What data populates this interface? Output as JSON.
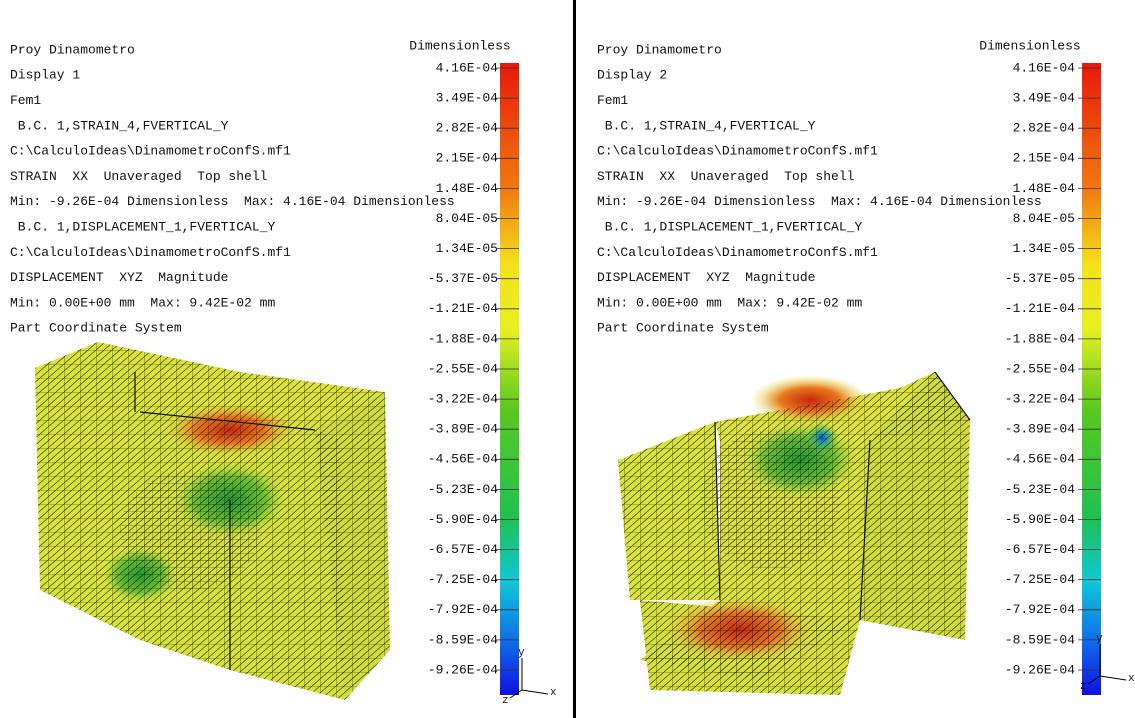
{
  "panels": [
    {
      "lines": [
        "Proy Dinamometro",
        "Display 1",
        "Fem1",
        " B.C. 1,STRAIN_4,FVERTICAL_Y",
        "C:\\CalculoIdeas\\DinamometroConfS.mf1",
        "STRAIN  XX  Unaveraged  Top shell",
        "Min: -9.26E-04 Dimensionless  Max: 4.16E-04 Dimensionless",
        " B.C. 1,DISPLACEMENT_1,FVERTICAL_Y",
        "C:\\CalculoIdeas\\DinamometroConfS.mf1",
        "DISPLACEMENT  XYZ  Magnitude",
        "Min: 0.00E+00 mm  Max: 9.42E-02 mm",
        "Part Coordinate System"
      ],
      "colorbar": {
        "unit": "Dimensionless",
        "labels": [
          "4.16E-04",
          "3.49E-04",
          "2.82E-04",
          "2.15E-04",
          "1.48E-04",
          "8.04E-05",
          "1.34E-05",
          "-5.37E-05",
          "-1.21E-04",
          "-1.88E-04",
          "-2.55E-04",
          "-3.22E-04",
          "-3.89E-04",
          "-4.56E-04",
          "-5.23E-04",
          "-5.90E-04",
          "-6.57E-04",
          "-7.25E-04",
          "-7.92E-04",
          "-8.59E-04",
          "-9.26E-04"
        ]
      },
      "triad": {
        "x": "x",
        "y": "y",
        "z": "z"
      }
    },
    {
      "lines": [
        "Proy Dinamometro",
        "Display 2",
        "Fem1",
        " B.C. 1,STRAIN_4,FVERTICAL_Y",
        "C:\\CalculoIdeas\\DinamometroConfS.mf1",
        "STRAIN  XX  Unaveraged  Top shell",
        "Min: -9.26E-04 Dimensionless  Max: 4.16E-04 Dimensionless",
        " B.C. 1,DISPLACEMENT_1,FVERTICAL_Y",
        "C:\\CalculoIdeas\\DinamometroConfS.mf1",
        "DISPLACEMENT  XYZ  Magnitude",
        "Min: 0.00E+00 mm  Max: 9.42E-02 mm",
        "Part Coordinate System"
      ],
      "colorbar": {
        "unit": "Dimensionless",
        "labels": [
          "4.16E-04",
          "3.49E-04",
          "2.82E-04",
          "2.15E-04",
          "1.48E-04",
          "8.04E-05",
          "1.34E-05",
          "-5.37E-05",
          "-1.21E-04",
          "-1.88E-04",
          "-2.55E-04",
          "-3.22E-04",
          "-3.89E-04",
          "-4.56E-04",
          "-5.23E-04",
          "-5.90E-04",
          "-6.57E-04",
          "-7.25E-04",
          "-7.92E-04",
          "-8.59E-04",
          "-9.26E-04"
        ]
      },
      "triad": {
        "x": "x",
        "y": "y",
        "z": "z"
      }
    }
  ]
}
